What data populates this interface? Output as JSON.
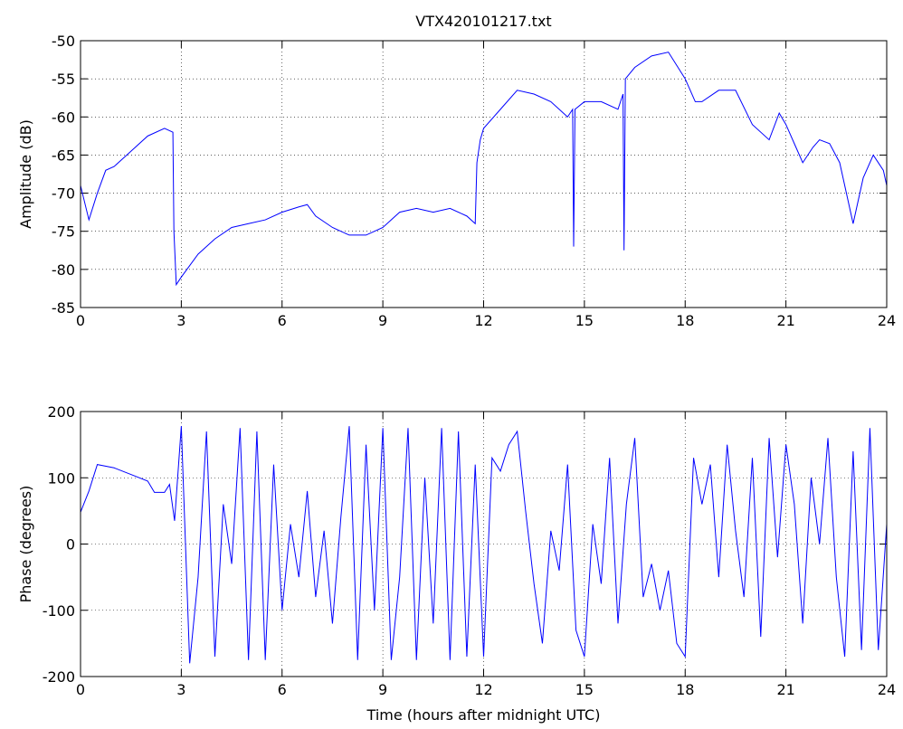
{
  "chart_data": [
    {
      "type": "line",
      "title": "VTX420101217.txt",
      "ylabel": "Amplitude (dB)",
      "color": "#0000ff",
      "grid": true,
      "xlim": [
        0,
        24
      ],
      "xticks": [
        0,
        3,
        6,
        9,
        12,
        15,
        18,
        21,
        24
      ],
      "ylim": [
        -85,
        -50
      ],
      "yticks": [
        -85,
        -80,
        -75,
        -70,
        -65,
        -60,
        -55,
        -50
      ],
      "x": [
        0,
        0.25,
        0.5,
        0.75,
        1,
        1.5,
        2,
        2.5,
        2.75,
        2.78,
        2.85,
        3,
        3.5,
        4,
        4.5,
        5,
        5.5,
        6,
        6.5,
        6.75,
        7,
        7.5,
        8,
        8.5,
        9,
        9.5,
        10,
        10.5,
        11,
        11.5,
        11.75,
        11.8,
        11.9,
        12,
        12.5,
        13,
        13.5,
        14,
        14.5,
        14.65,
        14.68,
        14.72,
        15,
        15.5,
        16,
        16.15,
        16.18,
        16.22,
        16.5,
        17,
        17.5,
        18,
        18.3,
        18.5,
        19,
        19.5,
        20,
        20.5,
        20.8,
        21,
        21.3,
        21.5,
        21.8,
        22,
        22.3,
        22.6,
        23,
        23.3,
        23.6,
        23.9,
        24
      ],
      "values": [
        -69,
        -73.5,
        -70,
        -67,
        -66.5,
        -64.5,
        -62.5,
        -61.5,
        -62,
        -75,
        -82,
        -81,
        -78,
        -76,
        -74.5,
        -74,
        -73.5,
        -72.5,
        -71.8,
        -71.5,
        -73,
        -74.5,
        -75.5,
        -75.5,
        -74.5,
        -72.5,
        -72,
        -72.5,
        -72,
        -73,
        -74,
        -66,
        -63,
        -61.5,
        -59,
        -56.5,
        -57,
        -58,
        -60,
        -59,
        -77,
        -59,
        -58,
        -58,
        -59,
        -57,
        -77.5,
        -55,
        -53.5,
        -52,
        -51.5,
        -55,
        -58,
        -58,
        -56.5,
        -56.5,
        -61,
        -63,
        -59.5,
        -61,
        -64,
        -66,
        -64,
        -63,
        -63.5,
        -66,
        -74,
        -68,
        -65,
        -67,
        -69
      ]
    },
    {
      "type": "line",
      "xlabel": "Time (hours after midnight UTC)",
      "ylabel": "Phase (degrees)",
      "color": "#0000ff",
      "grid": true,
      "xlim": [
        0,
        24
      ],
      "xticks": [
        0,
        3,
        6,
        9,
        12,
        15,
        18,
        21,
        24
      ],
      "ylim": [
        -200,
        200
      ],
      "yticks": [
        -200,
        -100,
        0,
        100,
        200
      ],
      "x": [
        0,
        0.25,
        0.5,
        1,
        1.5,
        2,
        2.2,
        2.5,
        2.65,
        2.8,
        3,
        3.25,
        3.5,
        3.75,
        4,
        4.25,
        4.5,
        4.75,
        5,
        5.25,
        5.5,
        5.75,
        6,
        6.25,
        6.5,
        6.75,
        7,
        7.25,
        7.5,
        7.75,
        8,
        8.25,
        8.5,
        8.75,
        9,
        9.25,
        9.5,
        9.75,
        10,
        10.25,
        10.5,
        10.75,
        11,
        11.25,
        11.5,
        11.75,
        12,
        12.25,
        12.5,
        12.75,
        13,
        13.25,
        13.5,
        13.75,
        14,
        14.25,
        14.5,
        14.75,
        15,
        15.25,
        15.5,
        15.75,
        16,
        16.25,
        16.5,
        16.75,
        17,
        17.25,
        17.5,
        17.75,
        18,
        18.25,
        18.5,
        18.75,
        19,
        19.25,
        19.5,
        19.75,
        20,
        20.25,
        20.5,
        20.75,
        21,
        21.25,
        21.5,
        21.75,
        22,
        22.25,
        22.5,
        22.75,
        23,
        23.25,
        23.5,
        23.75,
        24
      ],
      "values": [
        48,
        80,
        120,
        115,
        105,
        95,
        78,
        78,
        90,
        35,
        178,
        -180,
        -50,
        170,
        -170,
        60,
        -30,
        175,
        -175,
        170,
        -175,
        120,
        -100,
        30,
        -50,
        80,
        -80,
        20,
        -120,
        40,
        178,
        -175,
        150,
        -100,
        175,
        -175,
        -50,
        175,
        -175,
        100,
        -120,
        175,
        -175,
        170,
        -170,
        120,
        -170,
        130,
        110,
        150,
        170,
        50,
        -60,
        -150,
        20,
        -40,
        120,
        -130,
        -170,
        30,
        -60,
        130,
        -120,
        60,
        160,
        -80,
        -30,
        -100,
        -40,
        -150,
        -170,
        130,
        60,
        120,
        -50,
        150,
        20,
        -80,
        130,
        -140,
        160,
        -20,
        150,
        60,
        -120,
        100,
        0,
        160,
        -50,
        -170,
        140,
        -160,
        175,
        -160,
        30
      ]
    }
  ]
}
